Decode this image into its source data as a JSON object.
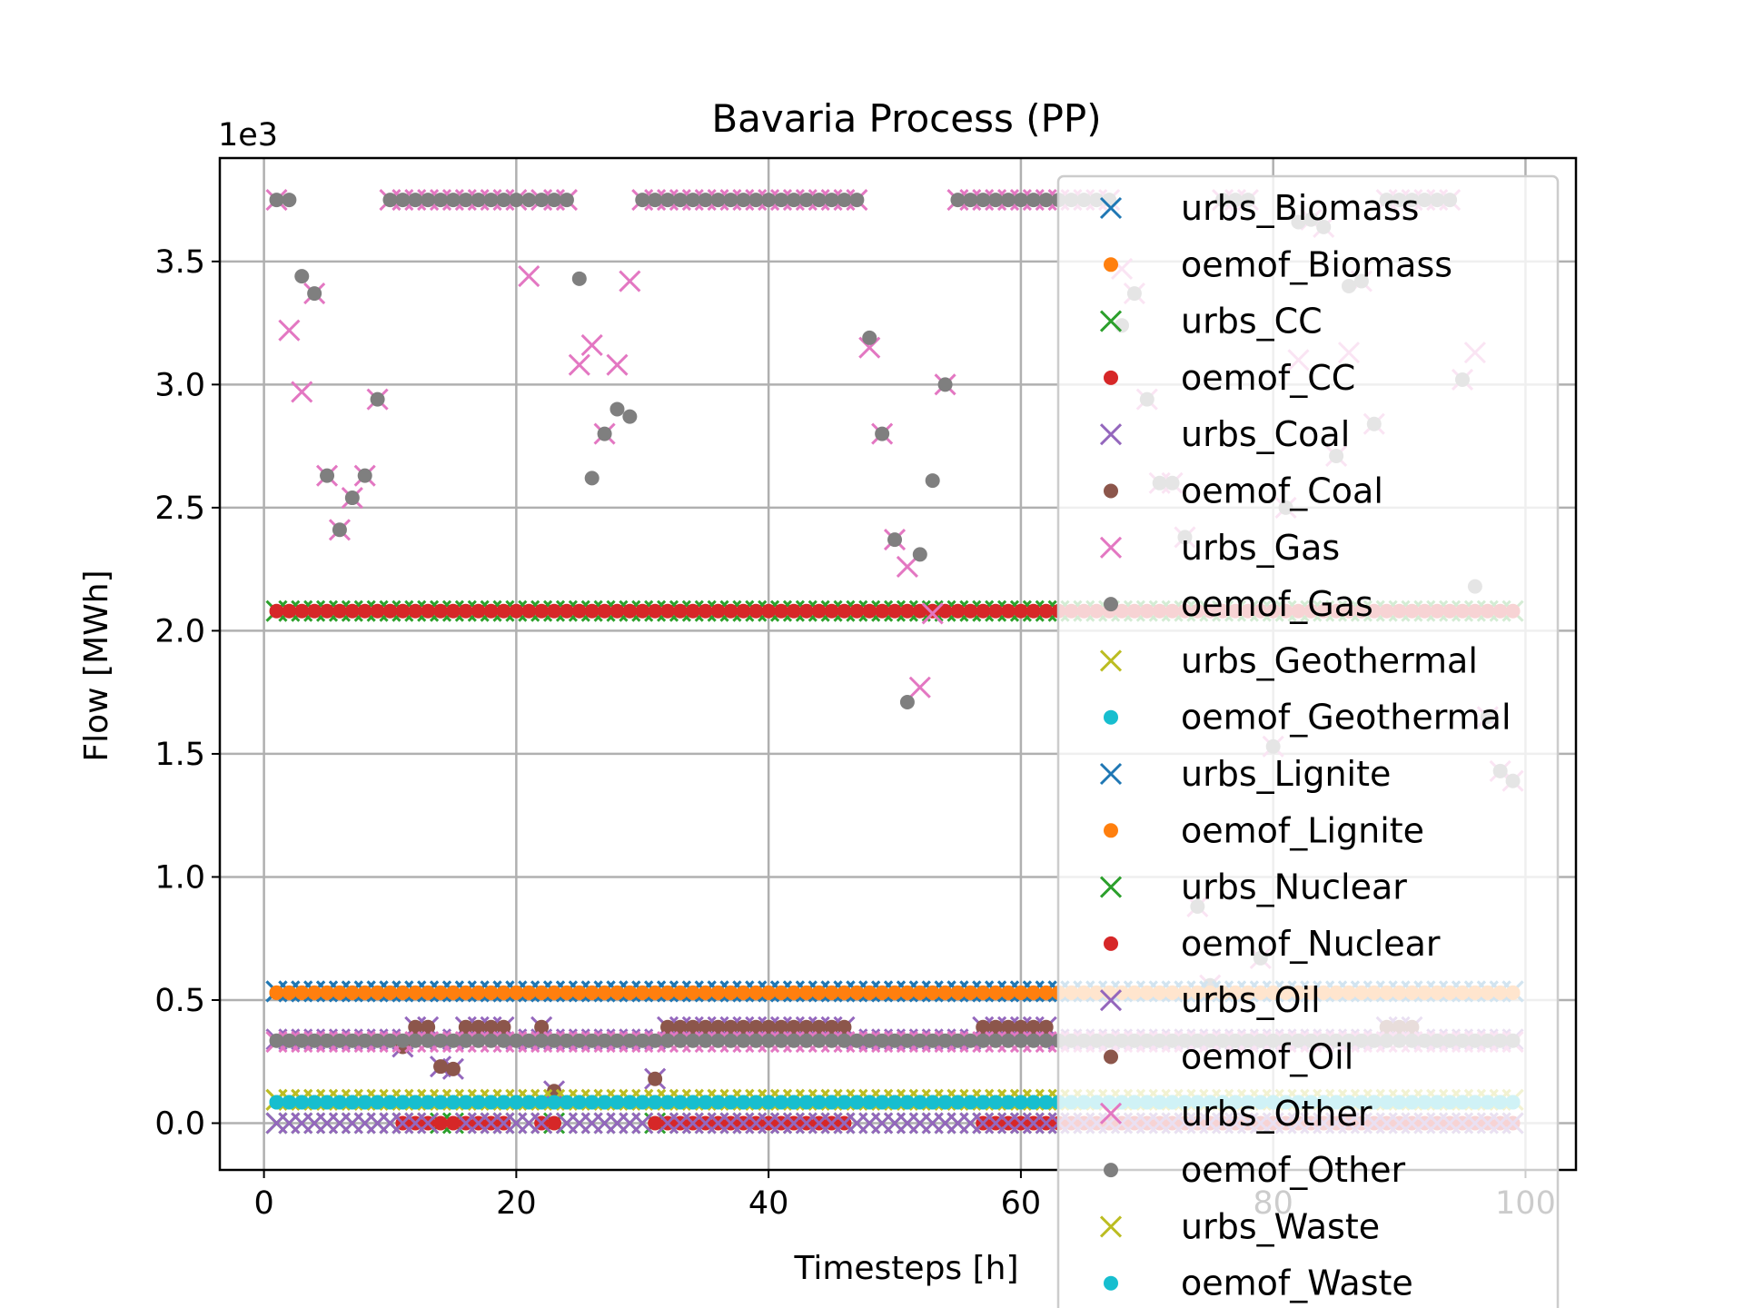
{
  "chart_data": {
    "type": "scatter",
    "title": "Bavaria Process (PP)",
    "xlabel": "Timesteps [h]",
    "ylabel": "Flow [MWh]",
    "y_offset_label": "1e3",
    "xlim": [
      -3.5,
      104
    ],
    "ylim": [
      -0.19,
      3.92
    ],
    "xticks": [
      0,
      20,
      40,
      60,
      80,
      100
    ],
    "xtick_labels": [
      "0",
      "20",
      "40",
      "60",
      "80",
      "100"
    ],
    "yticks": [
      0,
      0.5,
      1,
      1.5,
      2,
      2.5,
      3,
      3.5
    ],
    "ytick_labels": [
      "0.0",
      "0.5",
      "1.0",
      "1.5",
      "2.0",
      "2.5",
      "3.0",
      "3.5"
    ],
    "grid": true,
    "legend_position": "right",
    "x_range": [
      0,
      99
    ],
    "series": [
      {
        "name": "urbs_Biomass",
        "marker": "x",
        "color": "#1f77b4",
        "pattern": "constant",
        "value": 0.535
      },
      {
        "name": "oemof_Biomass",
        "marker": "o",
        "color": "#ff7f0e",
        "pattern": "constant",
        "value": 0.53
      },
      {
        "name": "urbs_CC",
        "marker": "x",
        "color": "#2ca02c",
        "pattern": "constant",
        "value": 2.08
      },
      {
        "name": "oemof_CC",
        "marker": "o",
        "color": "#d62728",
        "pattern": "constant",
        "value": 2.08
      },
      {
        "name": "urbs_Coal",
        "marker": "x",
        "color": "#9467bd",
        "pattern": "coal",
        "high": 0.39,
        "low": 0.34,
        "high_ranges": [
          [
            12,
            13
          ],
          [
            16,
            19
          ],
          [
            32,
            46
          ],
          [
            57,
            62
          ],
          [
            89,
            91
          ]
        ],
        "extra_points": [
          [
            22,
            0.39
          ],
          [
            11,
            0.31
          ]
        ]
      },
      {
        "name": "oemof_Coal",
        "marker": "o",
        "color": "#8c564b",
        "pattern": "coal",
        "high": 0.39,
        "low": null,
        "high_ranges": [
          [
            12,
            13
          ],
          [
            16,
            19
          ],
          [
            32,
            46
          ],
          [
            57,
            62
          ],
          [
            89,
            91
          ]
        ],
        "extra_points": [
          [
            22,
            0.39
          ],
          [
            11,
            0.31
          ]
        ]
      },
      {
        "name": "urbs_Gas",
        "marker": "x",
        "color": "#e377c2",
        "pattern": "gas"
      },
      {
        "name": "oemof_Gas",
        "marker": "o",
        "color": "#7f7f7f",
        "pattern": "gas"
      },
      {
        "name": "urbs_Geothermal",
        "marker": "x",
        "color": "#bcbd22",
        "pattern": "constant",
        "value": 0.095
      },
      {
        "name": "oemof_Geothermal",
        "marker": "o",
        "color": "#17becf",
        "pattern": "constant",
        "value": 0.085
      },
      {
        "name": "urbs_Lignite",
        "marker": "x",
        "color": "#1f77b4",
        "pattern": "constant",
        "value": 0.535
      },
      {
        "name": "oemof_Lignite",
        "marker": "o",
        "color": "#ff7f0e",
        "pattern": "constant",
        "value": 0.53
      },
      {
        "name": "urbs_Nuclear",
        "marker": "x",
        "color": "#2ca02c",
        "pattern": "constant",
        "value": 0.0
      },
      {
        "name": "oemof_Nuclear",
        "marker": "o",
        "color": "#d62728",
        "pattern": "nuclear",
        "value": 0.0,
        "ranges": [
          [
            11,
            19
          ],
          [
            22,
            23
          ],
          [
            31,
            46
          ],
          [
            57,
            99
          ]
        ]
      },
      {
        "name": "urbs_Oil",
        "marker": "x",
        "color": "#9467bd",
        "pattern": "oil",
        "points": [
          [
            14,
            0.23
          ],
          [
            15,
            0.22
          ],
          [
            23,
            0.13
          ],
          [
            31,
            0.18
          ]
        ],
        "base": 0.0
      },
      {
        "name": "oemof_Oil",
        "marker": "o",
        "color": "#8c564b",
        "pattern": "oil",
        "points": [
          [
            14,
            0.23
          ],
          [
            15,
            0.22
          ],
          [
            23,
            0.13
          ],
          [
            31,
            0.18
          ]
        ],
        "base": null
      },
      {
        "name": "urbs_Other",
        "marker": "x",
        "color": "#e377c2",
        "pattern": "constant",
        "value": 0.33
      },
      {
        "name": "oemof_Other",
        "marker": "o",
        "color": "#7f7f7f",
        "pattern": "constant",
        "value": 0.335
      },
      {
        "name": "urbs_Waste",
        "marker": "x",
        "color": "#bcbd22",
        "pattern": "constant",
        "value": 0.095
      },
      {
        "name": "oemof_Waste",
        "marker": "o",
        "color": "#17becf",
        "pattern": "constant",
        "value": 0.085
      }
    ],
    "gas_points": [
      [
        1,
        3.75
      ],
      [
        2,
        3.75
      ],
      [
        3,
        3.44
      ],
      [
        4,
        3.37
      ],
      [
        5,
        2.63
      ],
      [
        6,
        2.41
      ],
      [
        7,
        2.54
      ],
      [
        8,
        2.63
      ],
      [
        9,
        2.94
      ],
      [
        10,
        3.75
      ],
      [
        11,
        3.75
      ],
      [
        12,
        3.75
      ],
      [
        13,
        3.75
      ],
      [
        14,
        3.75
      ],
      [
        15,
        3.75
      ],
      [
        16,
        3.75
      ],
      [
        17,
        3.75
      ],
      [
        18,
        3.75
      ],
      [
        19,
        3.75
      ],
      [
        20,
        3.75
      ],
      [
        21,
        3.75
      ],
      [
        22,
        3.75
      ],
      [
        23,
        3.75
      ],
      [
        24,
        3.75
      ],
      [
        25,
        3.43
      ],
      [
        26,
        2.62
      ],
      [
        27,
        2.8
      ],
      [
        28,
        2.9
      ],
      [
        29,
        2.87
      ],
      [
        30,
        3.75
      ],
      [
        31,
        3.75
      ],
      [
        32,
        3.75
      ],
      [
        33,
        3.75
      ],
      [
        34,
        3.75
      ],
      [
        35,
        3.75
      ],
      [
        36,
        3.75
      ],
      [
        37,
        3.75
      ],
      [
        38,
        3.75
      ],
      [
        39,
        3.75
      ],
      [
        40,
        3.75
      ],
      [
        41,
        3.75
      ],
      [
        42,
        3.75
      ],
      [
        43,
        3.75
      ],
      [
        44,
        3.75
      ],
      [
        45,
        3.75
      ],
      [
        46,
        3.75
      ],
      [
        47,
        3.75
      ],
      [
        48,
        3.19
      ],
      [
        49,
        2.8
      ],
      [
        50,
        2.37
      ],
      [
        51,
        1.71
      ],
      [
        52,
        2.31
      ],
      [
        53,
        2.61
      ],
      [
        54,
        3.0
      ],
      [
        55,
        3.75
      ],
      [
        56,
        3.75
      ],
      [
        57,
        3.75
      ],
      [
        58,
        3.75
      ],
      [
        59,
        3.75
      ],
      [
        60,
        3.75
      ],
      [
        61,
        3.75
      ],
      [
        62,
        3.75
      ],
      [
        63,
        3.75
      ],
      [
        64,
        3.75
      ],
      [
        65,
        3.75
      ],
      [
        66,
        3.75
      ],
      [
        67,
        3.75
      ],
      [
        68,
        3.24
      ],
      [
        69,
        3.37
      ],
      [
        70,
        2.94
      ],
      [
        71,
        2.6
      ],
      [
        72,
        2.6
      ],
      [
        73,
        2.38
      ],
      [
        74,
        0.88
      ],
      [
        75,
        0.56
      ],
      [
        76,
        3.75
      ],
      [
        77,
        3.75
      ],
      [
        78,
        3.75
      ],
      [
        79,
        0.67
      ],
      [
        80,
        1.53
      ],
      [
        81,
        2.5
      ],
      [
        82,
        3.66
      ],
      [
        83,
        3.67
      ],
      [
        84,
        3.64
      ],
      [
        85,
        2.71
      ],
      [
        86,
        3.4
      ],
      [
        87,
        3.42
      ],
      [
        88,
        2.84
      ],
      [
        89,
        3.75
      ],
      [
        90,
        3.75
      ],
      [
        91,
        3.75
      ],
      [
        92,
        3.75
      ],
      [
        93,
        3.75
      ],
      [
        94,
        3.75
      ],
      [
        95,
        3.02
      ],
      [
        96,
        2.18
      ],
      [
        97,
        1.65
      ],
      [
        98,
        1.43
      ],
      [
        99,
        1.39
      ]
    ],
    "gas_urbs_overrides": [
      [
        2,
        3.22
      ],
      [
        3,
        2.97
      ],
      [
        5,
        2.63
      ],
      [
        6,
        2.41
      ],
      [
        7,
        2.54
      ],
      [
        8,
        2.63
      ],
      [
        9,
        2.94
      ],
      [
        21,
        3.44
      ],
      [
        25,
        3.08
      ],
      [
        26,
        3.16
      ],
      [
        28,
        3.08
      ],
      [
        29,
        3.42
      ],
      [
        48,
        3.15
      ],
      [
        51,
        2.26
      ],
      [
        52,
        1.77
      ],
      [
        53,
        2.07
      ],
      [
        68,
        3.47
      ],
      [
        70,
        2.94
      ],
      [
        73,
        2.38
      ],
      [
        82,
        3.1
      ],
      [
        86,
        3.13
      ],
      [
        88,
        2.84
      ],
      [
        96,
        3.13
      ]
    ]
  }
}
